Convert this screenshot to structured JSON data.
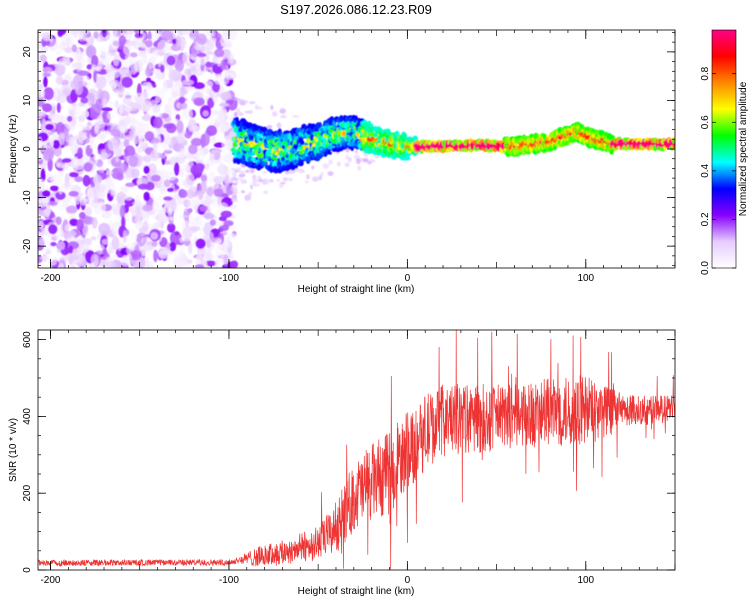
{
  "title": "S197.2026.086.12.23.R09",
  "chart_data": [
    {
      "type": "heatmap",
      "name": "spectrogram",
      "xlabel": "Height of straight line (km)",
      "ylabel": "Frequency (Hz)",
      "xlim": [
        -207,
        150
      ],
      "ylim": [
        -24.5,
        24.5
      ],
      "xticks": [
        {
          "value": -200,
          "label": "-200"
        },
        {
          "value": -100,
          "label": "-100"
        },
        {
          "value": 0,
          "label": "0"
        },
        {
          "value": 100,
          "label": "100"
        }
      ],
      "yticks": [
        {
          "value": -20,
          "label": "-20"
        },
        {
          "value": -10,
          "label": "-10"
        },
        {
          "value": 0,
          "label": "0"
        },
        {
          "value": 10,
          "label": "10"
        },
        {
          "value": 20,
          "label": "20"
        }
      ],
      "noise_region_x": [
        -207,
        -97
      ],
      "signal_centerline": [
        {
          "x": -97,
          "y": 2
        },
        {
          "x": -90,
          "y": 1
        },
        {
          "x": -80,
          "y": 0
        },
        {
          "x": -70,
          "y": -0.5
        },
        {
          "x": -60,
          "y": 0.5
        },
        {
          "x": -50,
          "y": 1.5
        },
        {
          "x": -40,
          "y": 3
        },
        {
          "x": -30,
          "y": 3.5
        },
        {
          "x": -20,
          "y": 2
        },
        {
          "x": -10,
          "y": 1
        },
        {
          "x": 0,
          "y": 0.5
        },
        {
          "x": 20,
          "y": 0.5
        },
        {
          "x": 40,
          "y": 0.8
        },
        {
          "x": 60,
          "y": 0.5
        },
        {
          "x": 80,
          "y": 1.5
        },
        {
          "x": 95,
          "y": 3.5
        },
        {
          "x": 105,
          "y": 2
        },
        {
          "x": 115,
          "y": 1
        },
        {
          "x": 150,
          "y": 1
        }
      ],
      "colorbar": {
        "label": "Normalized spectral amplitude",
        "range": [
          0,
          0.98
        ],
        "ticks": [
          {
            "value": 0.0,
            "label": "0.0"
          },
          {
            "value": 0.2,
            "label": "0.2"
          },
          {
            "value": 0.4,
            "label": "0.4"
          },
          {
            "value": 0.6,
            "label": "0.6"
          },
          {
            "value": 0.8,
            "label": "0.8"
          }
        ],
        "colors": [
          "#ffffff",
          "#e6ccff",
          "#8800ff",
          "#0000ff",
          "#00ffff",
          "#00ff00",
          "#ffff00",
          "#ff8800",
          "#ff0000",
          "#ff0088"
        ]
      }
    },
    {
      "type": "line",
      "name": "snr",
      "xlabel": "Height of straight line (km)",
      "ylabel": "SNR (10 * v/v)",
      "xlim": [
        -207,
        150
      ],
      "ylim": [
        0,
        625
      ],
      "xticks": [
        {
          "value": -200,
          "label": "-200"
        },
        {
          "value": -100,
          "label": "-100"
        },
        {
          "value": 0,
          "label": "0"
        },
        {
          "value": 100,
          "label": "100"
        }
      ],
      "yticks": [
        {
          "value": 0,
          "label": "0"
        },
        {
          "value": 200,
          "label": "200"
        },
        {
          "value": 400,
          "label": "400"
        },
        {
          "value": 600,
          "label": "600"
        }
      ],
      "color": "#ee3333",
      "trend": [
        {
          "x": -207,
          "y": 18
        },
        {
          "x": -100,
          "y": 20
        },
        {
          "x": -90,
          "y": 30
        },
        {
          "x": -70,
          "y": 45
        },
        {
          "x": -50,
          "y": 70
        },
        {
          "x": -40,
          "y": 110
        },
        {
          "x": -30,
          "y": 190
        },
        {
          "x": -20,
          "y": 230
        },
        {
          "x": -10,
          "y": 250
        },
        {
          "x": 0,
          "y": 310
        },
        {
          "x": 10,
          "y": 360
        },
        {
          "x": 20,
          "y": 390
        },
        {
          "x": 40,
          "y": 395
        },
        {
          "x": 60,
          "y": 400
        },
        {
          "x": 80,
          "y": 410
        },
        {
          "x": 100,
          "y": 415
        },
        {
          "x": 120,
          "y": 415
        },
        {
          "x": 150,
          "y": 420
        }
      ],
      "spread": [
        {
          "x": -207,
          "y": 8
        },
        {
          "x": -95,
          "y": 8
        },
        {
          "x": -85,
          "y": 25
        },
        {
          "x": -50,
          "y": 45
        },
        {
          "x": -30,
          "y": 90
        },
        {
          "x": -10,
          "y": 110
        },
        {
          "x": 20,
          "y": 95
        },
        {
          "x": 60,
          "y": 85
        },
        {
          "x": 100,
          "y": 95
        },
        {
          "x": 120,
          "y": 45
        },
        {
          "x": 150,
          "y": 35
        }
      ]
    }
  ]
}
